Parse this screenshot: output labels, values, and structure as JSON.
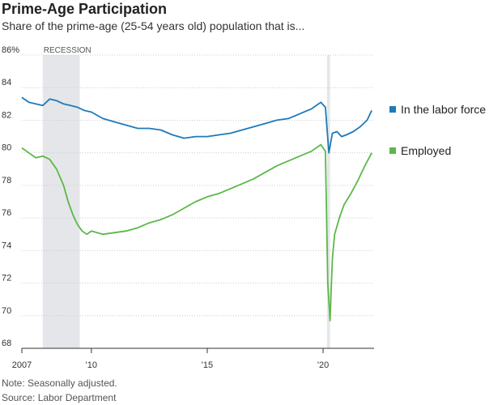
{
  "title": "Prime-Age Participation",
  "subtitle": "Share of the prime-age (25-54 years old) population that is...",
  "note": "Note: Seasonally adjusted.",
  "source": "Source: Labor Department",
  "recession_label": "RECESSION",
  "colors": {
    "labor_force": "#1f7ab8",
    "employed": "#5cb848",
    "recession": "#e4e6e9",
    "grid": "#cccccc"
  },
  "chart_data": {
    "type": "line",
    "title": "Prime-Age Participation",
    "ylim": [
      68,
      86
    ],
    "yticks": [
      {
        "value": 68,
        "label": "68"
      },
      {
        "value": 70,
        "label": "70"
      },
      {
        "value": 72,
        "label": "72"
      },
      {
        "value": 74,
        "label": "74"
      },
      {
        "value": 76,
        "label": "76"
      },
      {
        "value": 78,
        "label": "78"
      },
      {
        "value": 80,
        "label": "80"
      },
      {
        "value": 82,
        "label": "82"
      },
      {
        "value": 84,
        "label": "84"
      },
      {
        "value": 86,
        "label": "86%"
      }
    ],
    "xlim": [
      2007.0,
      2022.2
    ],
    "xticks": [
      {
        "value": 2007.0,
        "label": "2007"
      },
      {
        "value": 2010.0,
        "label": "'10"
      },
      {
        "value": 2015.0,
        "label": "'15"
      },
      {
        "value": 2020.0,
        "label": "'20"
      }
    ],
    "recession": [
      2007.9,
      2009.5
    ],
    "grid": true,
    "legend": "right",
    "series": [
      {
        "name": "In the labor force",
        "key": "labor_force",
        "x": [
          2007.0,
          2007.3,
          2007.6,
          2007.9,
          2008.2,
          2008.5,
          2008.8,
          2009.1,
          2009.4,
          2009.7,
          2010.0,
          2010.5,
          2011.0,
          2011.5,
          2012.0,
          2012.5,
          2013.0,
          2013.5,
          2014.0,
          2014.5,
          2015.0,
          2015.5,
          2016.0,
          2016.5,
          2017.0,
          2017.5,
          2018.0,
          2018.5,
          2019.0,
          2019.5,
          2019.9,
          2020.1,
          2020.25,
          2020.4,
          2020.6,
          2020.8,
          2021.0,
          2021.3,
          2021.6,
          2021.9,
          2022.1
        ],
        "values": [
          83.4,
          83.1,
          83.0,
          82.9,
          83.3,
          83.2,
          83.0,
          82.9,
          82.8,
          82.6,
          82.5,
          82.1,
          81.9,
          81.7,
          81.5,
          81.5,
          81.4,
          81.1,
          80.9,
          81.0,
          81.0,
          81.1,
          81.2,
          81.4,
          81.6,
          81.8,
          82.0,
          82.1,
          82.4,
          82.7,
          83.1,
          82.8,
          80.0,
          81.2,
          81.3,
          81.0,
          81.1,
          81.3,
          81.6,
          82.0,
          82.6
        ]
      },
      {
        "name": "Employed",
        "key": "employed",
        "x": [
          2007.0,
          2007.3,
          2007.6,
          2007.9,
          2008.2,
          2008.5,
          2008.8,
          2009.0,
          2009.2,
          2009.4,
          2009.6,
          2009.8,
          2010.0,
          2010.5,
          2011.0,
          2011.5,
          2012.0,
          2012.5,
          2013.0,
          2013.5,
          2014.0,
          2014.5,
          2015.0,
          2015.5,
          2016.0,
          2016.5,
          2017.0,
          2017.5,
          2018.0,
          2018.5,
          2019.0,
          2019.5,
          2019.9,
          2020.1,
          2020.2,
          2020.3,
          2020.4,
          2020.5,
          2020.7,
          2020.9,
          2021.2,
          2021.5,
          2021.8,
          2022.1
        ],
        "values": [
          80.3,
          80.0,
          79.7,
          79.8,
          79.6,
          79.0,
          78.0,
          77.0,
          76.2,
          75.6,
          75.2,
          75.0,
          75.2,
          75.0,
          75.1,
          75.2,
          75.4,
          75.7,
          75.9,
          76.2,
          76.6,
          77.0,
          77.3,
          77.5,
          77.8,
          78.1,
          78.4,
          78.8,
          79.2,
          79.5,
          79.8,
          80.1,
          80.5,
          80.1,
          72.0,
          69.7,
          73.5,
          75.0,
          76.0,
          76.8,
          77.5,
          78.3,
          79.2,
          80.0
        ]
      }
    ]
  }
}
